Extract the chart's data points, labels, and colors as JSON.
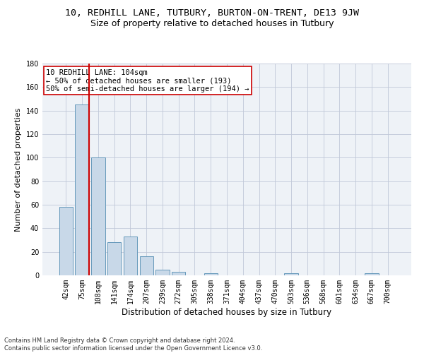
{
  "title1": "10, REDHILL LANE, TUTBURY, BURTON-ON-TRENT, DE13 9JW",
  "title2": "Size of property relative to detached houses in Tutbury",
  "xlabel": "Distribution of detached houses by size in Tutbury",
  "ylabel": "Number of detached properties",
  "categories": [
    "42sqm",
    "75sqm",
    "108sqm",
    "141sqm",
    "174sqm",
    "207sqm",
    "239sqm",
    "272sqm",
    "305sqm",
    "338sqm",
    "371sqm",
    "404sqm",
    "437sqm",
    "470sqm",
    "503sqm",
    "536sqm",
    "568sqm",
    "601sqm",
    "634sqm",
    "667sqm",
    "700sqm"
  ],
  "values": [
    58,
    145,
    100,
    28,
    33,
    16,
    5,
    3,
    0,
    2,
    0,
    0,
    0,
    0,
    2,
    0,
    0,
    0,
    0,
    2,
    0
  ],
  "bar_color": "#c8d8e8",
  "bar_edge_color": "#6699bb",
  "vline_color": "#cc0000",
  "annotation_text": "10 REDHILL LANE: 104sqm\n← 50% of detached houses are smaller (193)\n50% of semi-detached houses are larger (194) →",
  "annotation_box_color": "#ffffff",
  "annotation_box_edge": "#cc0000",
  "ylim": [
    0,
    180
  ],
  "yticks": [
    0,
    20,
    40,
    60,
    80,
    100,
    120,
    140,
    160,
    180
  ],
  "footnote": "Contains HM Land Registry data © Crown copyright and database right 2024.\nContains public sector information licensed under the Open Government Licence v3.0.",
  "background_color": "#eef2f7",
  "grid_color": "#c0c8d8",
  "title1_fontsize": 9.5,
  "title2_fontsize": 9,
  "xlabel_fontsize": 8.5,
  "ylabel_fontsize": 8,
  "tick_fontsize": 7,
  "annotation_fontsize": 7.5,
  "footnote_fontsize": 6
}
